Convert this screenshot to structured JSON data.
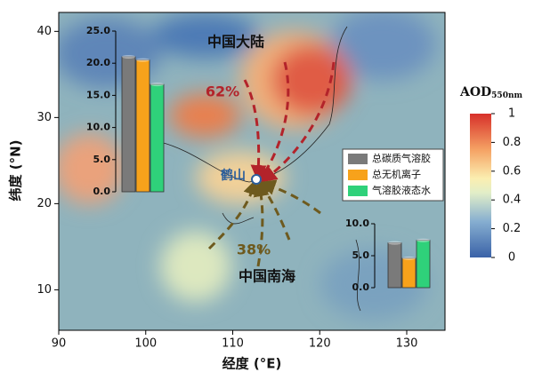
{
  "chart_data": [
    {
      "type": "map",
      "xlabel": "经度 (°E)",
      "ylabel": "纬度 (°N)",
      "xlim": [
        90,
        134.4
      ],
      "ylim": [
        5.3,
        42.2
      ],
      "xticks": [
        90,
        100,
        110,
        120,
        130
      ],
      "yticks": [
        10,
        20,
        30,
        40
      ],
      "annotations": [
        "中国大陆",
        "62%",
        "鹤山",
        "38%",
        "中国南海"
      ],
      "colorbar": {
        "title": "AOD",
        "subscript": "550nm",
        "lim": [
          0,
          1
        ],
        "ticks": [
          0,
          0.2,
          0.4,
          0.6,
          0.8,
          1
        ]
      }
    },
    {
      "type": "bar",
      "series": [
        {
          "name": "总碳质气溶胶",
          "color": "#7a7a7a",
          "values": [
            21
          ]
        },
        {
          "name": "总无机离子",
          "color": "#f7a21b",
          "values": [
            20.5
          ]
        },
        {
          "name": "气溶胶液态水",
          "color": "#2fd17a",
          "values": [
            16.7
          ]
        }
      ],
      "ylim": [
        0,
        25
      ],
      "yticks": [
        {
          "value": 0,
          "label": "0.0"
        },
        {
          "value": 5,
          "label": "5.0"
        },
        {
          "value": 10,
          "label": "10.0"
        },
        {
          "value": 15,
          "label": "15.0"
        },
        {
          "value": 20,
          "label": "20.0"
        },
        {
          "value": 25,
          "label": "25.0"
        }
      ]
    },
    {
      "type": "bar",
      "values": [
        7,
        4.6,
        7.4
      ],
      "ylim": [
        0,
        10
      ],
      "yticks": [
        {
          "value": 0,
          "label": "0.0"
        },
        {
          "value": 5,
          "label": "5.0"
        },
        {
          "value": 10,
          "label": "10.0"
        }
      ]
    }
  ]
}
